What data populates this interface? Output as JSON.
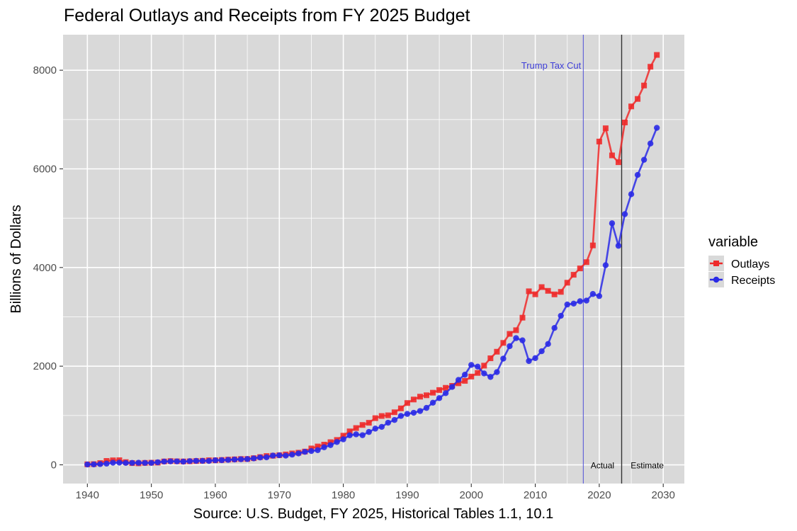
{
  "chart_data": {
    "type": "line",
    "title": "Federal Outlays and Receipts from FY 2025 Budget",
    "xlabel": "Source: U.S. Budget, FY 2025, Historical Tables 1.1, 10.1",
    "ylabel": "Billions of Dollars",
    "xlim": [
      1936.2,
      2033.3
    ],
    "ylim": [
      -380,
      8720
    ],
    "x_ticks": [
      1940,
      1950,
      1960,
      1970,
      1980,
      1990,
      2000,
      2010,
      2020,
      2030
    ],
    "y_ticks": [
      0,
      2000,
      4000,
      6000,
      8000
    ],
    "legend": {
      "title": "variable",
      "position": "right"
    },
    "colors": {
      "Outlays": "#ee2a2a",
      "Receipts": "#2a2ae6",
      "panel": "#d9d9d9",
      "grid": "#ffffff",
      "tax_cut_line": "#3f3fd8",
      "estimate_line": "#333333"
    },
    "annotations": [
      {
        "text": "Trump Tax Cut",
        "x": 2017.5,
        "y": 8090,
        "kind": "vline"
      },
      {
        "text": "Actual",
        "x": 2020.5,
        "y": 0
      },
      {
        "text": "Estimate",
        "x": 2027.5,
        "y": 0
      }
    ],
    "vlines": [
      {
        "x": 2017.5,
        "name": "tax-cut"
      },
      {
        "x": 2023.5,
        "name": "estimate-start"
      }
    ],
    "x": [
      1940,
      1941,
      1942,
      1943,
      1944,
      1945,
      1946,
      1947,
      1948,
      1949,
      1950,
      1951,
      1952,
      1953,
      1954,
      1955,
      1956,
      1957,
      1958,
      1959,
      1960,
      1961,
      1962,
      1963,
      1964,
      1965,
      1966,
      1967,
      1968,
      1969,
      1970,
      1971,
      1972,
      1973,
      1974,
      1975,
      1976,
      1977,
      1978,
      1979,
      1980,
      1981,
      1982,
      1983,
      1984,
      1985,
      1986,
      1987,
      1988,
      1989,
      1990,
      1991,
      1992,
      1993,
      1994,
      1995,
      1996,
      1997,
      1998,
      1999,
      2000,
      2001,
      2002,
      2003,
      2004,
      2005,
      2006,
      2007,
      2008,
      2009,
      2010,
      2011,
      2012,
      2013,
      2014,
      2015,
      2016,
      2017,
      2018,
      2019,
      2020,
      2021,
      2022,
      2023,
      2024,
      2025,
      2026,
      2027,
      2028,
      2029
    ],
    "series": [
      {
        "name": "Outlays",
        "marker": "square",
        "values": [
          10,
          14,
          35,
          79,
          91,
          93,
          55,
          35,
          30,
          39,
          43,
          45,
          68,
          76,
          71,
          68,
          71,
          77,
          82,
          92,
          92,
          98,
          106,
          111,
          118,
          118,
          135,
          157,
          178,
          184,
          196,
          210,
          231,
          246,
          269,
          332,
          372,
          409,
          459,
          504,
          591,
          678,
          746,
          808,
          852,
          946,
          990,
          1004,
          1065,
          1144,
          1253,
          1324,
          1382,
          1410,
          1462,
          1516,
          1561,
          1601,
          1653,
          1702,
          1789,
          1863,
          2011,
          2160,
          2293,
          2472,
          2655,
          2729,
          2983,
          3518,
          3457,
          3603,
          3527,
          3455,
          3506,
          3692,
          3853,
          3982,
          4109,
          4448,
          6554,
          6823,
          6273,
          6135,
          6941,
          7266,
          7418,
          7690,
          8070,
          8310
        ]
      },
      {
        "name": "Receipts",
        "marker": "circle",
        "values": [
          7,
          9,
          15,
          24,
          43,
          45,
          39,
          39,
          42,
          39,
          39,
          52,
          66,
          70,
          70,
          65,
          75,
          80,
          80,
          79,
          92,
          94,
          100,
          107,
          113,
          117,
          131,
          149,
          153,
          187,
          193,
          187,
          207,
          231,
          263,
          279,
          298,
          356,
          400,
          463,
          517,
          599,
          618,
          601,
          666,
          734,
          769,
          854,
          909,
          991,
          1032,
          1055,
          1091,
          1154,
          1259,
          1352,
          1453,
          1579,
          1722,
          1827,
          2025,
          1991,
          1853,
          1782,
          1880,
          2153,
          2406,
          2568,
          2524,
          2105,
          2163,
          2303,
          2450,
          2775,
          3021,
          3250,
          3268,
          3316,
          3330,
          3463,
          3421,
          4047,
          4897,
          4441,
          5082,
          5486,
          5877,
          6184,
          6514,
          6832
        ]
      }
    ]
  }
}
